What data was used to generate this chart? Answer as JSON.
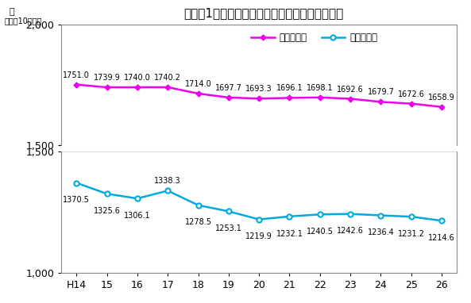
{
  "title": "病院の1日平均在院患者・外来患者数の年次推移",
  "ylabel_top": "人",
  "ylabel_sub": "（人口10万対）",
  "x_labels": [
    "H14",
    "15",
    "16",
    "17",
    "18",
    "19",
    "20",
    "21",
    "22",
    "23",
    "24",
    "25",
    "26"
  ],
  "x_values": [
    0,
    1,
    2,
    3,
    4,
    5,
    6,
    7,
    8,
    9,
    10,
    11,
    12
  ],
  "inpatient": [
    1751.0,
    1739.9,
    1740.0,
    1740.2,
    1714.0,
    1697.7,
    1693.3,
    1696.1,
    1698.1,
    1692.6,
    1679.7,
    1672.6,
    1658.9
  ],
  "outpatient": [
    1370.5,
    1325.6,
    1306.1,
    1338.3,
    1278.5,
    1253.1,
    1219.9,
    1232.1,
    1240.5,
    1242.6,
    1236.4,
    1231.2,
    1214.6
  ],
  "inpatient_color": "#EE00EE",
  "outpatient_color": "#00AADD",
  "legend_inpatient": "在院患者数",
  "legend_outpatient": "外来患者数",
  "background_color": "#FFFFFF",
  "grid_color": "#CCCCCC",
  "label_fontsize": 7.0,
  "axis_fontsize": 9,
  "title_fontsize": 11
}
